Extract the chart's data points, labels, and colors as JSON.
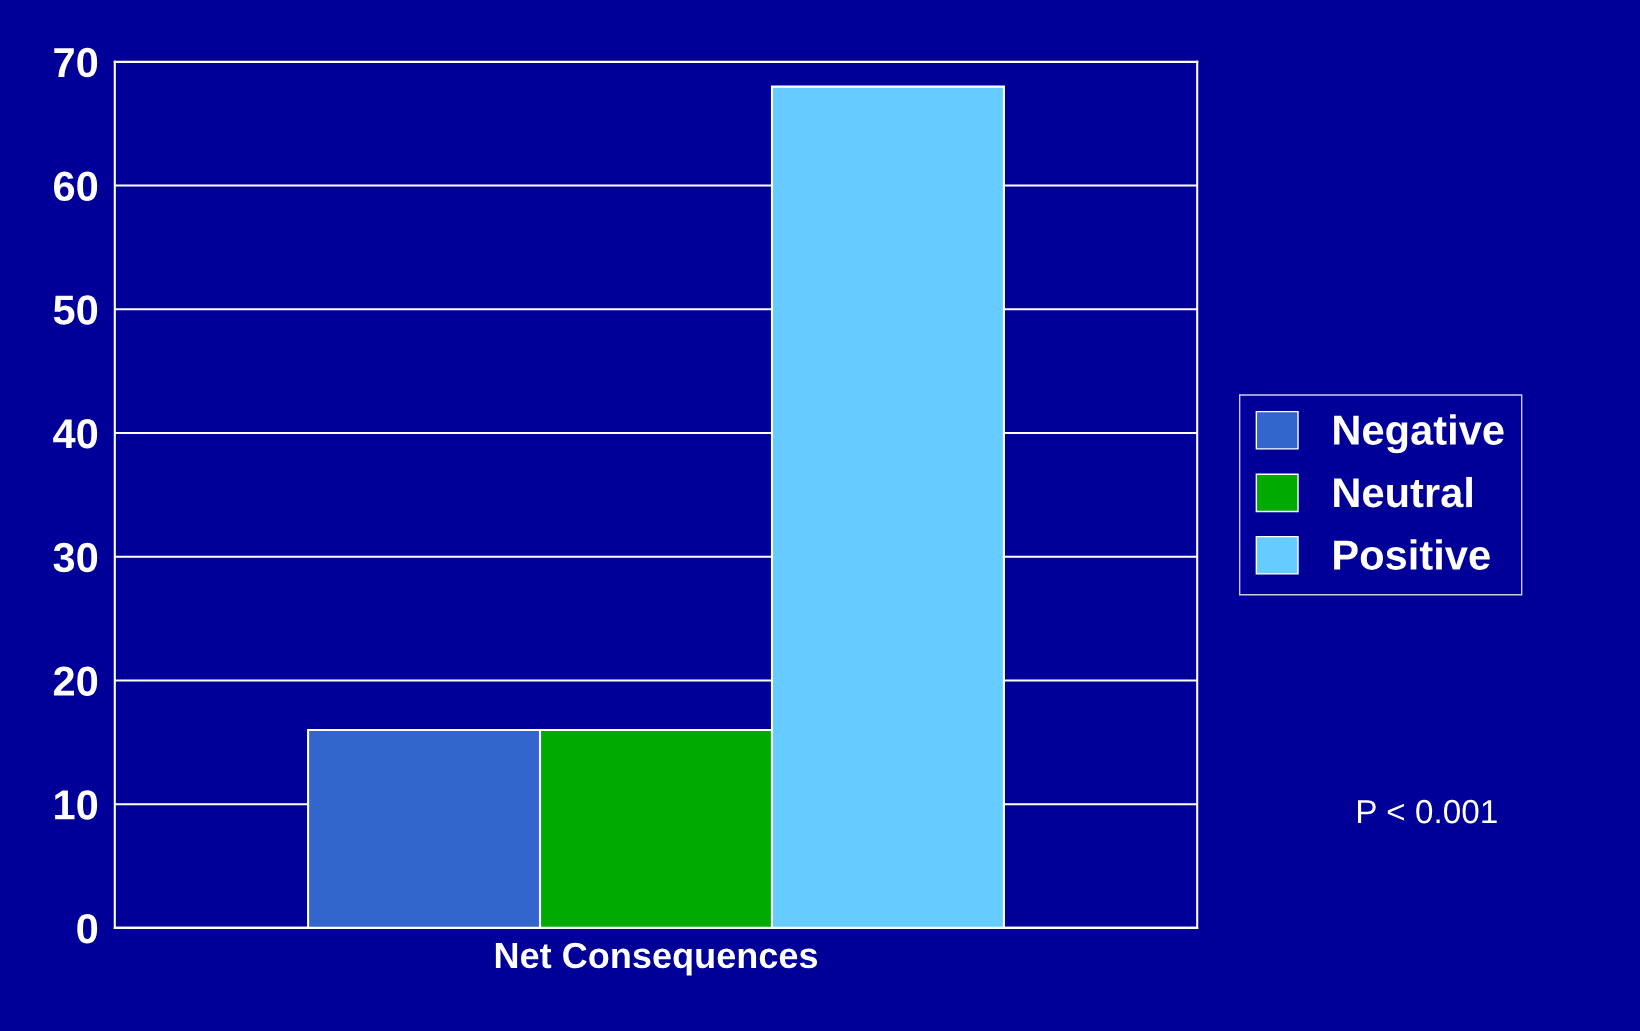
{
  "chart_data": {
    "type": "bar",
    "categories": [
      "Net Consequences"
    ],
    "series": [
      {
        "name": "Negative",
        "color": "#3366cc",
        "values": [
          16
        ]
      },
      {
        "name": "Neutral",
        "color": "#00aa00",
        "values": [
          16
        ]
      },
      {
        "name": "Positive",
        "color": "#66ccff",
        "values": [
          68
        ]
      }
    ],
    "ylim": [
      0,
      70
    ],
    "yticks": [
      0,
      10,
      20,
      30,
      40,
      50,
      60,
      70
    ],
    "grid": "y",
    "legend": "right",
    "annotations": [
      "P < 0.001"
    ]
  }
}
